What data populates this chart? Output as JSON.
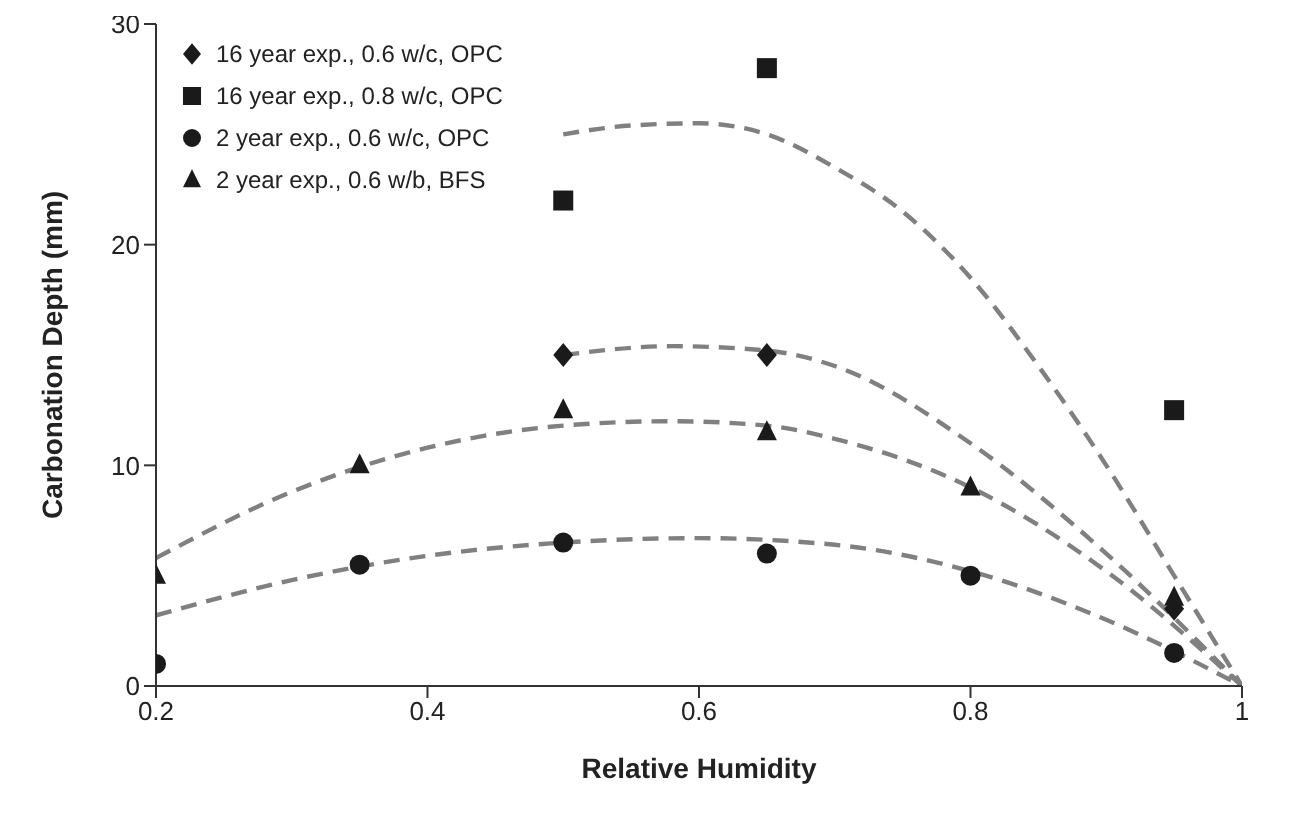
{
  "chart_data": {
    "type": "scatter",
    "xlabel": "Relative Humidity",
    "ylabel": "Carbonation Depth (mm)",
    "xlim": [
      0.2,
      1
    ],
    "xticks": [
      0.2,
      0.4,
      0.6,
      0.8,
      1
    ],
    "ylim": [
      0,
      30
    ],
    "yticks": [
      0,
      10,
      20,
      30
    ],
    "grid": false,
    "legend": "top left",
    "series": [
      {
        "name": "16 year exp., 0.6 w/c, OPC",
        "color": "#1a1a1a",
        "marker": "diamond",
        "x": [
          0.5,
          0.65,
          0.95
        ],
        "values": [
          15,
          15,
          3.5
        ]
      },
      {
        "name": "16 year exp., 0.8 w/c, OPC",
        "color": "#1a1a1a",
        "marker": "square",
        "x": [
          0.5,
          0.65,
          0.95
        ],
        "values": [
          22,
          28,
          12.5
        ]
      },
      {
        "name": "2 year exp., 0.6 w/c, OPC",
        "color": "#1a1a1a",
        "marker": "circle",
        "x": [
          0.2,
          0.35,
          0.5,
          0.65,
          0.8,
          0.95
        ],
        "values": [
          1,
          5.5,
          6.5,
          6,
          5,
          1.5
        ]
      },
      {
        "name": "2 year exp., 0.6 w/b, BFS",
        "color": "#1a1a1a",
        "marker": "triangle",
        "x": [
          0.2,
          0.35,
          0.5,
          0.65,
          0.8,
          0.95
        ],
        "values": [
          5,
          10,
          12.5,
          11.5,
          9,
          4
        ]
      },
      {
        "type": "line",
        "color": "#808080",
        "marker": "none",
        "line_style": "dashed",
        "x": [
          0.5,
          0.55,
          0.6,
          0.65,
          0.7,
          0.75,
          0.8,
          0.85,
          0.9,
          0.95,
          1
        ],
        "values": [
          25,
          25.4,
          25.5,
          25,
          23.5,
          21.5,
          18.5,
          14.5,
          10,
          5,
          0
        ]
      },
      {
        "type": "line",
        "color": "#808080",
        "marker": "none",
        "line_style": "dashed",
        "x": [
          0.5,
          0.58,
          0.65,
          0.7,
          0.8,
          0.9,
          1
        ],
        "values": [
          15,
          15.4,
          15.2,
          14.5,
          11,
          6,
          0
        ]
      },
      {
        "type": "line",
        "color": "#808080",
        "marker": "none",
        "line_style": "dashed",
        "x": [
          0.2,
          0.3,
          0.4,
          0.5,
          0.58,
          0.65,
          0.7,
          0.8,
          0.9,
          1
        ],
        "values": [
          5.8,
          8.8,
          10.8,
          11.8,
          12,
          11.8,
          11.2,
          9,
          5.2,
          0
        ]
      },
      {
        "type": "line",
        "color": "#808080",
        "marker": "none",
        "line_style": "dashed",
        "x": [
          0.2,
          0.3,
          0.4,
          0.5,
          0.6,
          0.7,
          0.8,
          0.9,
          1
        ],
        "values": [
          3.2,
          4.8,
          5.9,
          6.5,
          6.7,
          6.4,
          5.2,
          3,
          0
        ]
      }
    ]
  }
}
